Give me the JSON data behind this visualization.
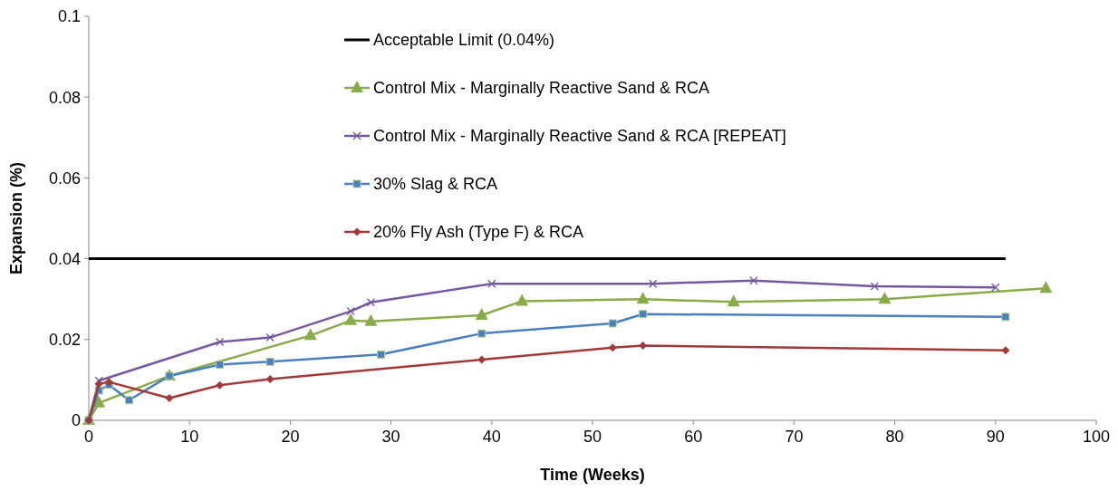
{
  "chart_data": {
    "type": "line",
    "xlabel": "Time (Weeks)",
    "ylabel": "Expansion (%)",
    "xlim": [
      0,
      100
    ],
    "xticks": [
      0,
      10,
      20,
      30,
      40,
      50,
      60,
      70,
      80,
      90,
      100
    ],
    "ylim": [
      0,
      0.1
    ],
    "yticks": [
      0,
      0.02,
      0.04,
      0.06,
      0.08,
      0.1
    ],
    "grid": false,
    "legend": "top",
    "line_style": "solid",
    "series": [
      {
        "name": "Acceptable Limit (0.04%)",
        "color": "#000000",
        "marker": "none",
        "x": [
          0,
          91
        ],
        "values": [
          0.04,
          0.04
        ]
      },
      {
        "name": "Control Mix - Marginally Reactive Sand & RCA",
        "color": "#8aab4a",
        "marker": "triangle",
        "x": [
          0,
          1,
          8,
          22,
          26,
          28,
          39,
          43,
          55,
          64,
          79,
          95
        ],
        "values": [
          0,
          0.0043,
          0.011,
          0.021,
          0.0247,
          0.0245,
          0.026,
          0.0295,
          0.03,
          0.0293,
          0.03,
          0.0327
        ]
      },
      {
        "name": "Control Mix - Marginally Reactive Sand & RCA [REPEAT]",
        "color": "#7558a0",
        "marker": "cross",
        "x": [
          0,
          1,
          13,
          18,
          26,
          28,
          40,
          56,
          66,
          78,
          90
        ],
        "values": [
          0,
          0.0098,
          0.0194,
          0.0205,
          0.027,
          0.0292,
          0.0338,
          0.0338,
          0.0346,
          0.0332,
          0.0329
        ]
      },
      {
        "name": "30% Slag & RCA",
        "color": "#4a7fc0",
        "marker": "square",
        "x": [
          0,
          1,
          2,
          4,
          8,
          13,
          18,
          29,
          39,
          52,
          55,
          91
        ],
        "values": [
          0,
          0.0074,
          0.0088,
          0.005,
          0.011,
          0.0138,
          0.0145,
          0.0163,
          0.0215,
          0.024,
          0.0263,
          0.0256
        ]
      },
      {
        "name": "20% Fly Ash (Type F) & RCA",
        "color": "#a03a3a",
        "marker": "diamond",
        "x": [
          0,
          1,
          2,
          8,
          13,
          18,
          39,
          52,
          55,
          91
        ],
        "values": [
          0,
          0.009,
          0.0095,
          0.0055,
          0.0087,
          0.0102,
          0.015,
          0.018,
          0.0185,
          0.0173
        ]
      }
    ]
  }
}
